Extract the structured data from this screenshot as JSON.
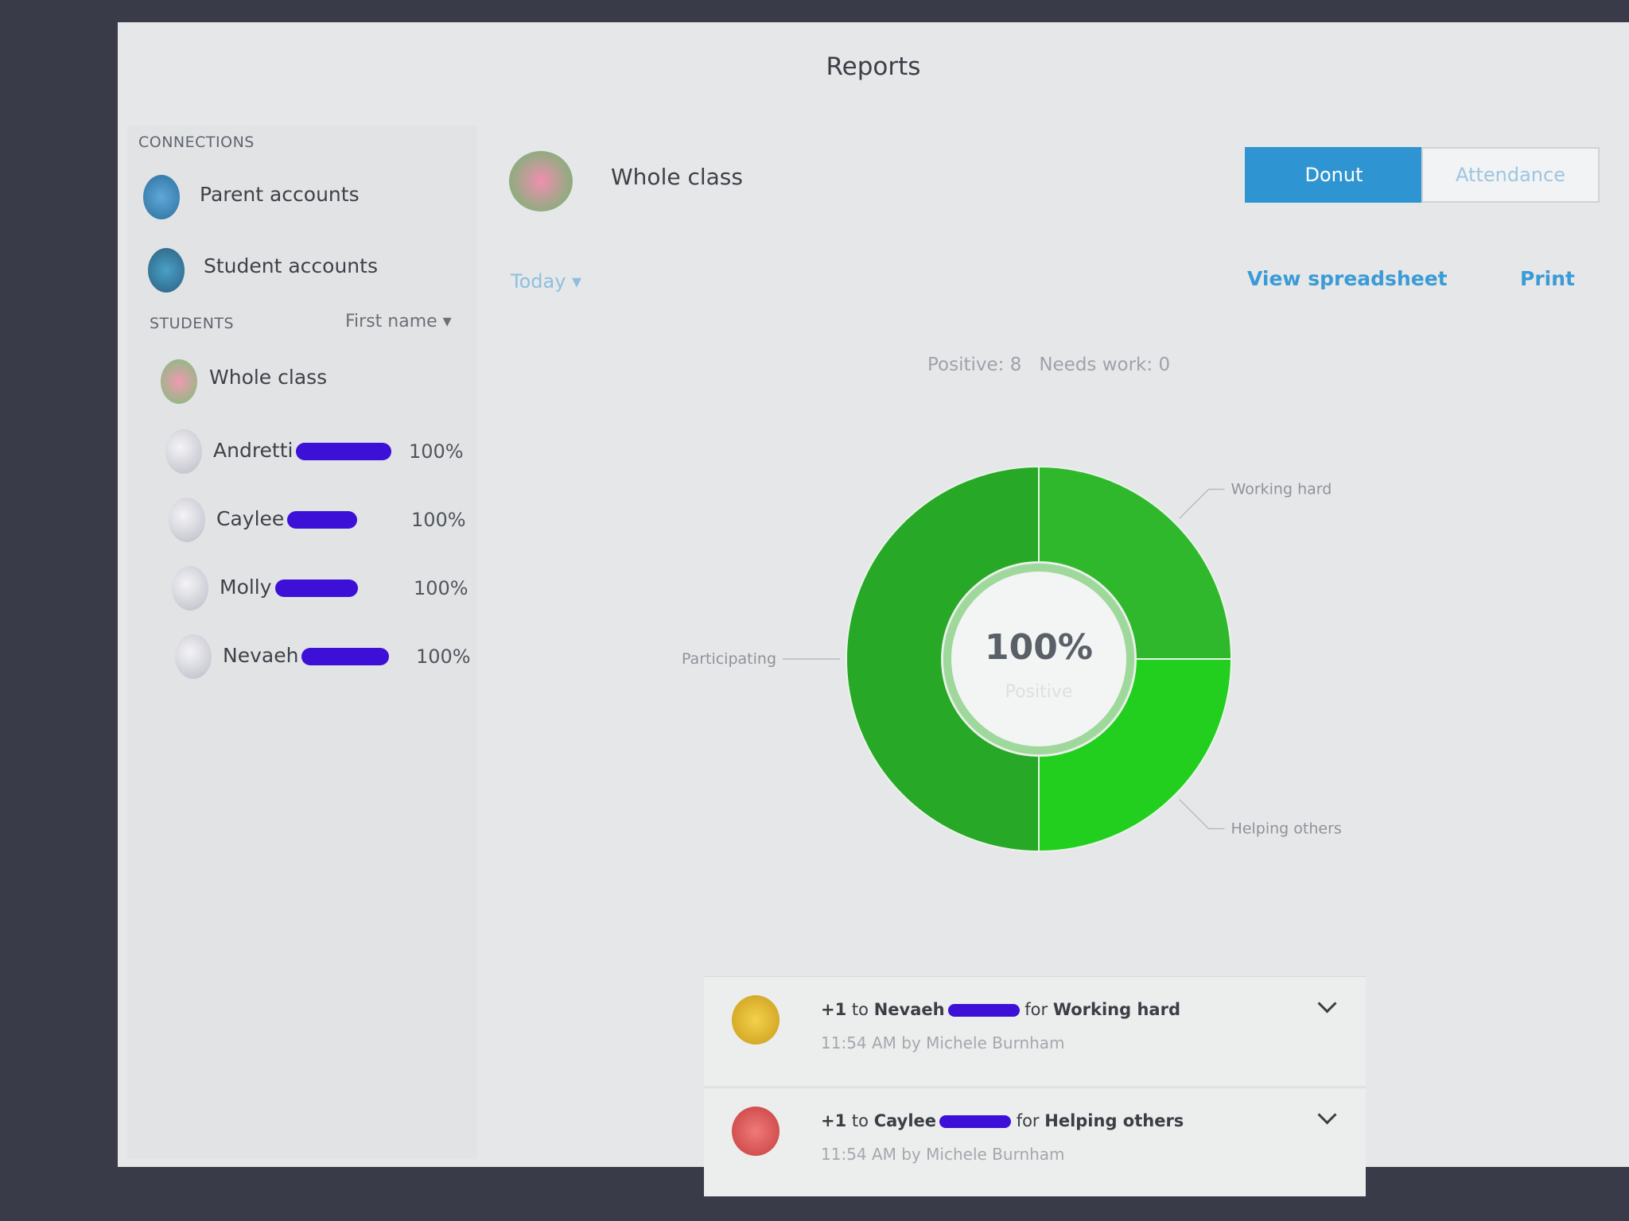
{
  "header": {
    "title": "Reports"
  },
  "sidebar": {
    "connections_heading": "CONNECTIONS",
    "connections": [
      "Parent accounts",
      "Student accounts"
    ],
    "students_heading": "STUDENTS",
    "sort": "First name",
    "whole_class": "Whole class",
    "students": [
      {
        "name": "Andretti",
        "score": "100%"
      },
      {
        "name": "Caylee",
        "score": "100%"
      },
      {
        "name": "Molly",
        "score": "100%"
      },
      {
        "name": "Nevaeh",
        "score": "100%"
      }
    ]
  },
  "main": {
    "class_name": "Whole class",
    "views": [
      "Donut",
      "Attendance"
    ],
    "range": "Today",
    "links": [
      "View spreadsheet",
      "Print"
    ],
    "summary": {
      "positive_label": "Positive:",
      "positive": 8,
      "needs_work_label": "Needs work:",
      "needs_work": 0
    }
  },
  "chart_data": {
    "type": "donut",
    "categories": [
      "Working hard",
      "Helping others",
      "Participating"
    ],
    "values": [
      2,
      2,
      4
    ],
    "colors": [
      "#2fb82c",
      "#23cf1e",
      "#27a826"
    ],
    "center_value": "100%",
    "center_label": "Positive"
  },
  "feed": [
    {
      "points": "+1",
      "to": "to",
      "student": "Nevaeh",
      "for": "for",
      "behavior": "Working hard",
      "meta": "11:54 AM by Michele Burnham"
    },
    {
      "points": "+1",
      "to": "to",
      "student": "Caylee",
      "for": "for",
      "behavior": "Helping others",
      "meta": "11:54 AM by Michele Burnham"
    }
  ]
}
